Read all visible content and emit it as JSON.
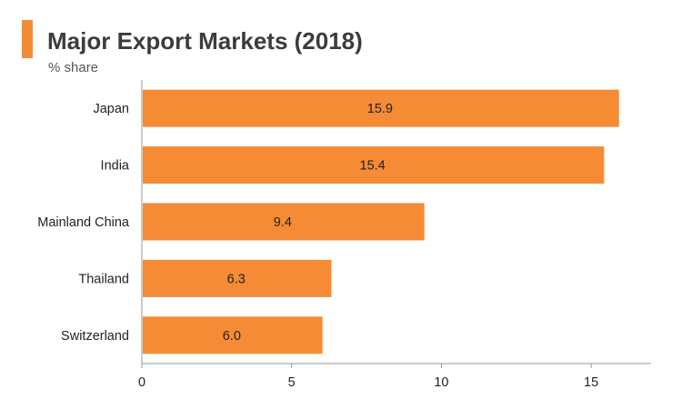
{
  "header": {
    "title": "Major Export Markets (2018)",
    "subtitle": "% share"
  },
  "colors": {
    "accent": "#f58b35",
    "bar": "#f58b35",
    "axis": "#999999"
  },
  "chart_data": {
    "type": "bar",
    "orientation": "horizontal",
    "title": "Major Export Markets (2018)",
    "subtitle": "% share",
    "categories": [
      "Japan",
      "India",
      "Mainland China",
      "Thailand",
      "Switzerland"
    ],
    "values": [
      15.9,
      15.4,
      9.4,
      6.3,
      6.0
    ],
    "value_labels": [
      "15.9",
      "15.4",
      "9.4",
      "6.3",
      "6.0"
    ],
    "xlim": [
      0,
      17
    ],
    "xticks": [
      0,
      5,
      10,
      15
    ],
    "grid": false,
    "legend": "none"
  }
}
